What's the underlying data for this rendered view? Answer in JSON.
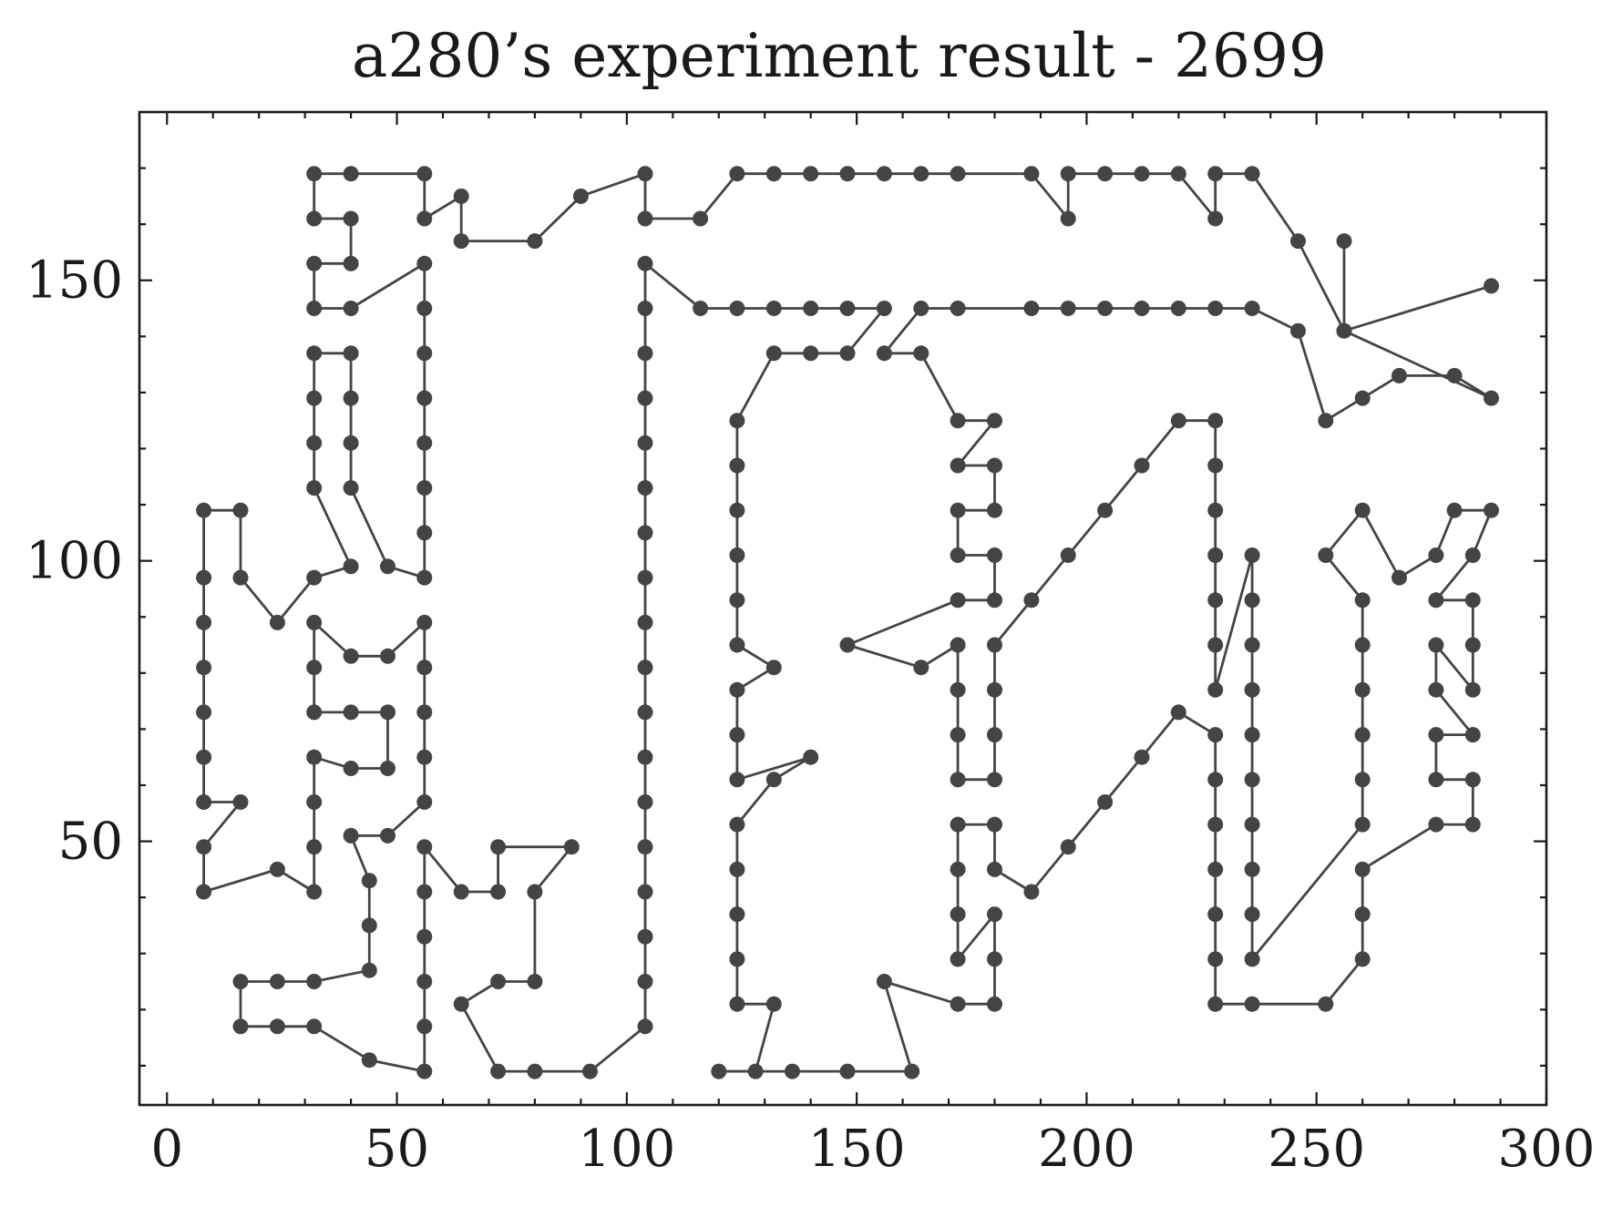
{
  "chart_data": {
    "type": "line",
    "title": "a280’s experiment result - 2699",
    "xlabel": "",
    "ylabel": "",
    "xlim": [
      -6,
      300
    ],
    "ylim": [
      3,
      180
    ],
    "xticks": [
      0,
      50,
      100,
      150,
      200,
      250,
      300
    ],
    "yticks": [
      50,
      100,
      150
    ],
    "grid": false,
    "color": "#444444",
    "series": [
      {
        "points": [
          [
            288,
            149
          ],
          [
            256,
            141
          ],
          [
            246,
            157
          ],
          [
            236,
            169
          ],
          [
            228,
            169
          ],
          [
            228,
            161
          ],
          [
            220,
            169
          ],
          [
            212,
            169
          ],
          [
            204,
            169
          ],
          [
            196,
            169
          ],
          [
            196,
            161
          ],
          [
            188,
            169
          ],
          [
            172,
            169
          ],
          [
            164,
            169
          ],
          [
            156,
            169
          ],
          [
            148,
            169
          ],
          [
            140,
            169
          ],
          [
            132,
            169
          ],
          [
            124,
            169
          ],
          [
            116,
            161
          ],
          [
            104,
            161
          ],
          [
            104,
            169
          ],
          [
            90,
            165
          ],
          [
            80,
            157
          ],
          [
            64,
            157
          ],
          [
            64,
            165
          ],
          [
            56,
            161
          ],
          [
            56,
            169
          ],
          [
            40,
            169
          ],
          [
            32,
            169
          ],
          [
            32,
            161
          ],
          [
            40,
            161
          ],
          [
            40,
            153
          ],
          [
            32,
            153
          ],
          [
            32,
            145
          ],
          [
            40,
            145
          ],
          [
            56,
            153
          ],
          [
            56,
            145
          ],
          [
            56,
            137
          ],
          [
            56,
            129
          ],
          [
            56,
            121
          ],
          [
            56,
            113
          ],
          [
            56,
            105
          ],
          [
            56,
            97
          ],
          [
            48,
            99
          ],
          [
            40,
            113
          ],
          [
            40,
            121
          ],
          [
            40,
            129
          ],
          [
            40,
            137
          ],
          [
            32,
            137
          ],
          [
            32,
            129
          ],
          [
            32,
            121
          ],
          [
            32,
            113
          ],
          [
            40,
            99
          ],
          [
            32,
            97
          ],
          [
            24,
            89
          ],
          [
            16,
            97
          ],
          [
            16,
            109
          ],
          [
            8,
            109
          ],
          [
            8,
            97
          ],
          [
            8,
            89
          ],
          [
            8,
            81
          ],
          [
            8,
            73
          ],
          [
            8,
            65
          ],
          [
            8,
            57
          ],
          [
            16,
            57
          ],
          [
            8,
            49
          ],
          [
            8,
            41
          ],
          [
            24,
            45
          ],
          [
            32,
            41
          ],
          [
            32,
            49
          ],
          [
            32,
            57
          ],
          [
            32,
            65
          ],
          [
            40,
            63
          ],
          [
            48,
            63
          ],
          [
            48,
            73
          ],
          [
            40,
            73
          ],
          [
            32,
            73
          ],
          [
            32,
            81
          ],
          [
            32,
            89
          ],
          [
            40,
            83
          ],
          [
            48,
            83
          ],
          [
            56,
            89
          ],
          [
            56,
            81
          ],
          [
            56,
            73
          ],
          [
            56,
            65
          ],
          [
            56,
            57
          ],
          [
            48,
            51
          ],
          [
            40,
            51
          ],
          [
            44,
            43
          ],
          [
            44,
            35
          ],
          [
            44,
            27
          ],
          [
            32,
            25
          ],
          [
            24,
            25
          ],
          [
            16,
            25
          ],
          [
            16,
            17
          ],
          [
            24,
            17
          ],
          [
            32,
            17
          ],
          [
            44,
            11
          ],
          [
            56,
            9
          ],
          [
            56,
            17
          ],
          [
            56,
            25
          ],
          [
            56,
            33
          ],
          [
            56,
            41
          ],
          [
            56,
            49
          ],
          [
            64,
            41
          ],
          [
            72,
            41
          ],
          [
            72,
            49
          ],
          [
            88,
            49
          ],
          [
            80,
            41
          ],
          [
            80,
            25
          ],
          [
            72,
            25
          ],
          [
            64,
            21
          ],
          [
            72,
            9
          ],
          [
            80,
            9
          ],
          [
            92,
            9
          ],
          [
            104,
            17
          ],
          [
            104,
            25
          ],
          [
            104,
            33
          ],
          [
            104,
            41
          ],
          [
            104,
            49
          ],
          [
            104,
            57
          ],
          [
            104,
            65
          ],
          [
            104,
            73
          ],
          [
            104,
            81
          ],
          [
            104,
            89
          ],
          [
            104,
            97
          ],
          [
            104,
            105
          ],
          [
            104,
            113
          ],
          [
            104,
            121
          ],
          [
            104,
            129
          ],
          [
            104,
            137
          ],
          [
            104,
            145
          ],
          [
            104,
            153
          ],
          [
            116,
            145
          ],
          [
            124,
            145
          ],
          [
            132,
            145
          ],
          [
            140,
            145
          ],
          [
            148,
            145
          ],
          [
            156,
            145
          ],
          [
            148,
            137
          ],
          [
            140,
            137
          ],
          [
            132,
            137
          ],
          [
            124,
            125
          ],
          [
            124,
            117
          ],
          [
            124,
            109
          ],
          [
            124,
            101
          ],
          [
            124,
            93
          ],
          [
            124,
            85
          ],
          [
            132,
            81
          ],
          [
            124,
            77
          ],
          [
            124,
            69
          ],
          [
            124,
            61
          ],
          [
            140,
            65
          ],
          [
            132,
            61
          ],
          [
            124,
            53
          ],
          [
            124,
            45
          ],
          [
            124,
            37
          ],
          [
            124,
            29
          ],
          [
            124,
            21
          ],
          [
            132,
            21
          ],
          [
            128,
            9
          ],
          [
            120,
            9
          ],
          [
            136,
            9
          ],
          [
            148,
            9
          ],
          [
            162,
            9
          ],
          [
            156,
            25
          ],
          [
            172,
            21
          ],
          [
            180,
            21
          ],
          [
            180,
            29
          ],
          [
            180,
            37
          ],
          [
            172,
            29
          ],
          [
            172,
            37
          ],
          [
            172,
            45
          ],
          [
            172,
            53
          ],
          [
            180,
            53
          ],
          [
            180,
            45
          ],
          [
            188,
            41
          ],
          [
            196,
            49
          ],
          [
            204,
            57
          ],
          [
            212,
            65
          ],
          [
            220,
            73
          ],
          [
            228,
            69
          ],
          [
            228,
            61
          ],
          [
            228,
            53
          ],
          [
            228,
            45
          ],
          [
            228,
            37
          ],
          [
            228,
            29
          ],
          [
            228,
            21
          ],
          [
            236,
            21
          ],
          [
            252,
            21
          ],
          [
            260,
            29
          ],
          [
            260,
            37
          ],
          [
            260,
            45
          ],
          [
            276,
            53
          ],
          [
            284,
            53
          ],
          [
            284,
            61
          ],
          [
            276,
            61
          ],
          [
            276,
            69
          ],
          [
            284,
            69
          ],
          [
            276,
            77
          ],
          [
            276,
            85
          ],
          [
            284,
            77
          ],
          [
            284,
            85
          ],
          [
            284,
            93
          ],
          [
            276,
            93
          ],
          [
            284,
            101
          ],
          [
            288,
            109
          ],
          [
            280,
            109
          ],
          [
            276,
            101
          ],
          [
            268,
            97
          ],
          [
            260,
            109
          ],
          [
            252,
            101
          ],
          [
            260,
            93
          ],
          [
            260,
            85
          ],
          [
            260,
            77
          ],
          [
            260,
            69
          ],
          [
            260,
            61
          ],
          [
            260,
            53
          ],
          [
            236,
            29
          ],
          [
            236,
            37
          ],
          [
            236,
            45
          ],
          [
            236,
            53
          ],
          [
            236,
            61
          ],
          [
            236,
            69
          ],
          [
            236,
            77
          ],
          [
            236,
            85
          ],
          [
            236,
            93
          ],
          [
            236,
            101
          ],
          [
            228,
            77
          ],
          [
            228,
            85
          ],
          [
            228,
            93
          ],
          [
            228,
            101
          ],
          [
            228,
            109
          ],
          [
            228,
            117
          ],
          [
            228,
            125
          ],
          [
            220,
            125
          ],
          [
            212,
            117
          ],
          [
            204,
            109
          ],
          [
            196,
            101
          ],
          [
            188,
            93
          ],
          [
            180,
            85
          ],
          [
            180,
            77
          ],
          [
            180,
            69
          ],
          [
            180,
            61
          ],
          [
            172,
            61
          ],
          [
            172,
            69
          ],
          [
            172,
            77
          ],
          [
            172,
            85
          ],
          [
            164,
            81
          ],
          [
            148,
            85
          ],
          [
            172,
            93
          ],
          [
            180,
            93
          ],
          [
            180,
            101
          ],
          [
            172,
            101
          ],
          [
            172,
            109
          ],
          [
            180,
            109
          ],
          [
            180,
            117
          ],
          [
            172,
            117
          ],
          [
            180,
            125
          ],
          [
            172,
            125
          ],
          [
            164,
            137
          ],
          [
            156,
            137
          ],
          [
            164,
            145
          ],
          [
            172,
            145
          ],
          [
            188,
            145
          ],
          [
            196,
            145
          ],
          [
            204,
            145
          ],
          [
            212,
            145
          ],
          [
            220,
            145
          ],
          [
            228,
            145
          ],
          [
            236,
            145
          ],
          [
            246,
            141
          ],
          [
            252,
            125
          ],
          [
            260,
            129
          ],
          [
            268,
            133
          ],
          [
            280,
            133
          ],
          [
            288,
            129
          ],
          [
            256,
            141
          ],
          [
            256,
            157
          ]
        ]
      }
    ]
  }
}
